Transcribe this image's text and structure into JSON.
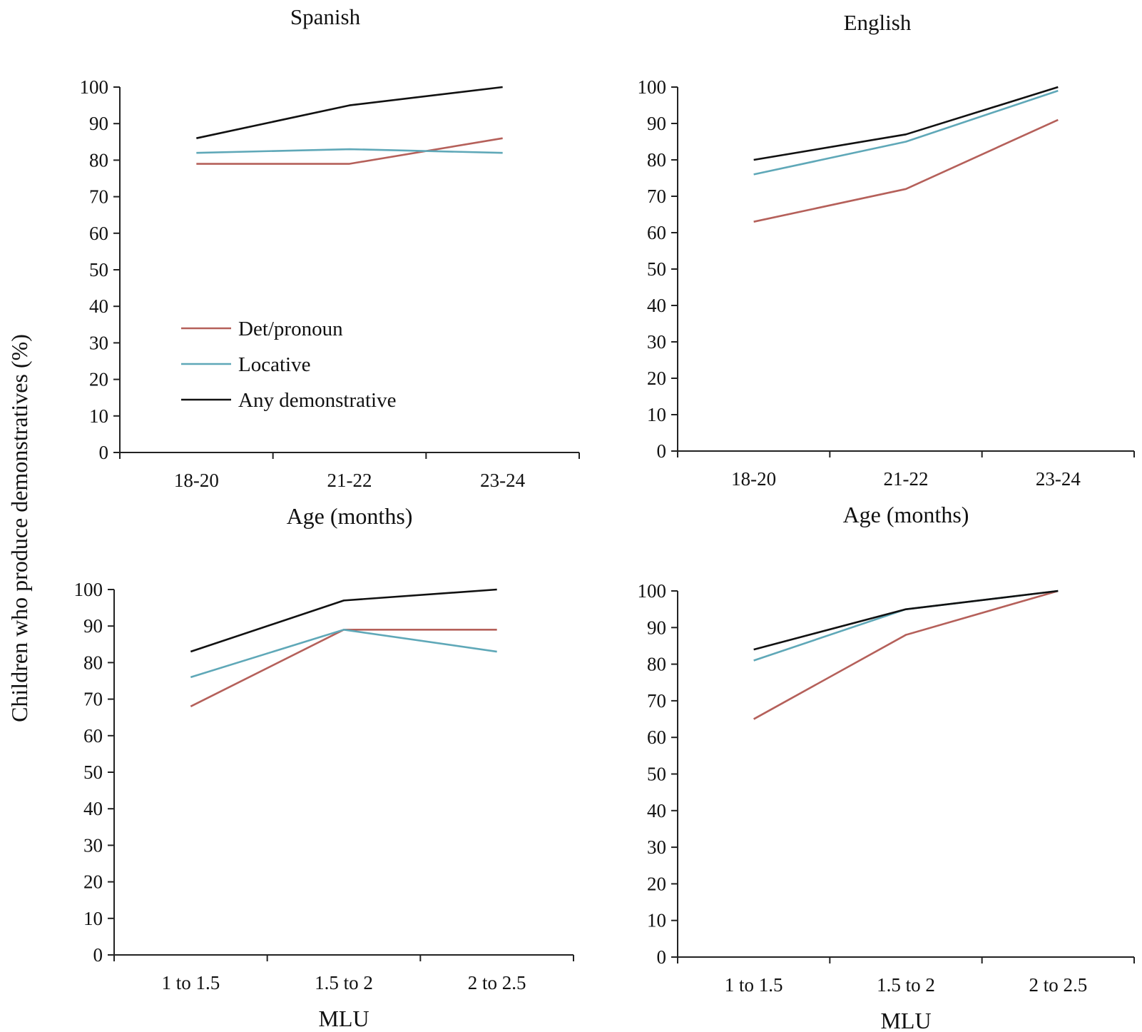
{
  "figure": {
    "ylabel": "Children who produce demonstratives (%)",
    "columns": [
      "Spanish",
      "English"
    ],
    "legend": [
      {
        "label": "Det/pronoun",
        "color": "#b5605a"
      },
      {
        "label": "Locative",
        "color": "#5fa8b8"
      },
      {
        "label": "Any demonstrative",
        "color": "#111111"
      }
    ]
  },
  "chart_data": [
    {
      "type": "line",
      "title": "Spanish",
      "xlabel": "Age (months)",
      "ylabel": "Children who produce demonstratives (%)",
      "categories": [
        "18-20",
        "21-22",
        "23-24"
      ],
      "ylim": [
        0,
        100
      ],
      "yticks": [
        0,
        10,
        20,
        30,
        40,
        50,
        60,
        70,
        80,
        90,
        100
      ],
      "legend": "lower-left",
      "series": [
        {
          "name": "Det/pronoun",
          "color": "#b5605a",
          "values": [
            79,
            79,
            86
          ]
        },
        {
          "name": "Locative",
          "color": "#5fa8b8",
          "values": [
            82,
            83,
            82
          ]
        },
        {
          "name": "Any demonstrative",
          "color": "#111111",
          "values": [
            86,
            95,
            100
          ]
        }
      ]
    },
    {
      "type": "line",
      "title": "English",
      "xlabel": "Age (months)",
      "ylabel": "",
      "categories": [
        "18-20",
        "21-22",
        "23-24"
      ],
      "ylim": [
        0,
        100
      ],
      "yticks": [
        0,
        10,
        20,
        30,
        40,
        50,
        60,
        70,
        80,
        90,
        100
      ],
      "series": [
        {
          "name": "Det/pronoun",
          "color": "#b5605a",
          "values": [
            63,
            72,
            91
          ]
        },
        {
          "name": "Locative",
          "color": "#5fa8b8",
          "values": [
            76,
            85,
            99
          ]
        },
        {
          "name": "Any demonstrative",
          "color": "#111111",
          "values": [
            80,
            87,
            100
          ]
        }
      ]
    },
    {
      "type": "line",
      "title": "",
      "xlabel": "MLU",
      "ylabel": "",
      "categories": [
        "1 to 1.5",
        "1.5 to 2",
        "2 to 2.5"
      ],
      "ylim": [
        0,
        100
      ],
      "yticks": [
        0,
        10,
        20,
        30,
        40,
        50,
        60,
        70,
        80,
        90,
        100
      ],
      "series": [
        {
          "name": "Det/pronoun",
          "color": "#b5605a",
          "values": [
            68,
            89,
            89
          ]
        },
        {
          "name": "Locative",
          "color": "#5fa8b8",
          "values": [
            76,
            89,
            83
          ]
        },
        {
          "name": "Any demonstrative",
          "color": "#111111",
          "values": [
            83,
            97,
            100
          ]
        }
      ]
    },
    {
      "type": "line",
      "title": "",
      "xlabel": "MLU",
      "ylabel": "",
      "categories": [
        "1 to 1.5",
        "1.5 to 2",
        "2 to 2.5"
      ],
      "ylim": [
        0,
        100
      ],
      "yticks": [
        0,
        10,
        20,
        30,
        40,
        50,
        60,
        70,
        80,
        90,
        100
      ],
      "series": [
        {
          "name": "Det/pronoun",
          "color": "#b5605a",
          "values": [
            65,
            88,
            100
          ]
        },
        {
          "name": "Locative",
          "color": "#5fa8b8",
          "values": [
            81,
            95,
            100
          ]
        },
        {
          "name": "Any demonstrative",
          "color": "#111111",
          "values": [
            84,
            95,
            100
          ]
        }
      ]
    }
  ]
}
